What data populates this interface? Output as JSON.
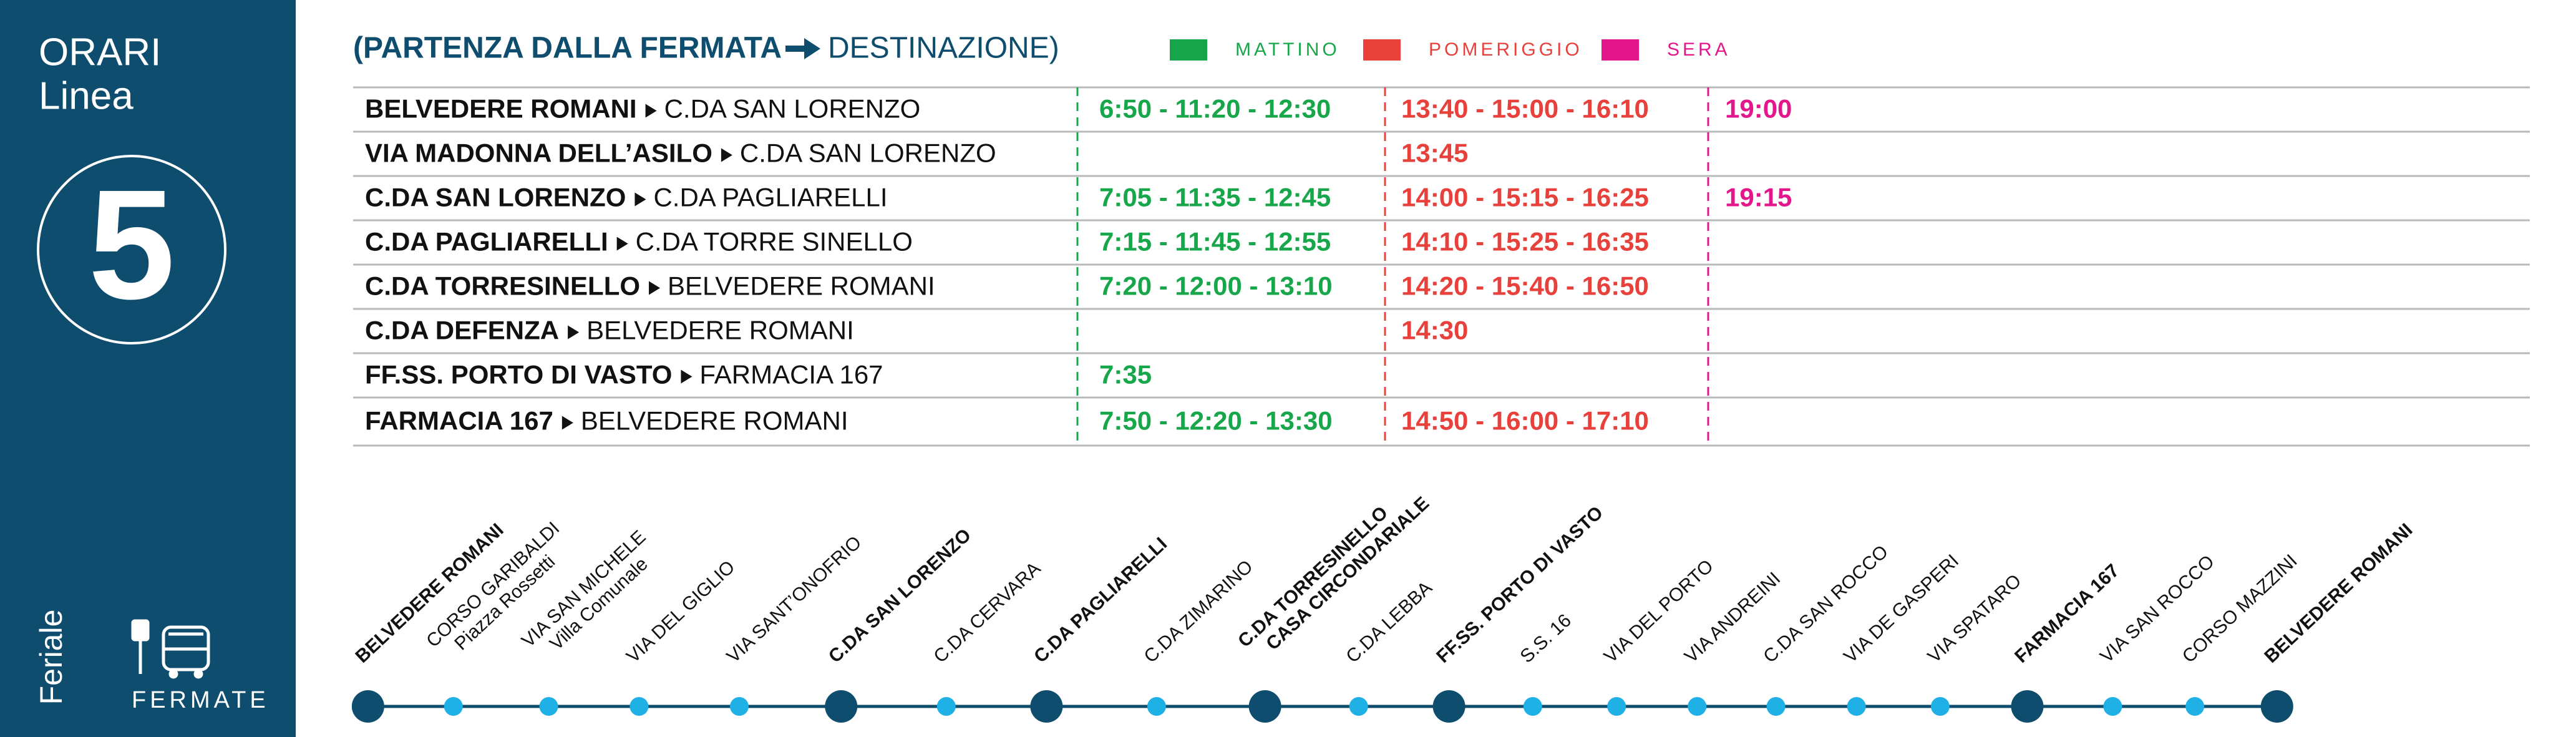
{
  "sidebar": {
    "title": "ORARI",
    "subtitle": "Linea",
    "line_number": "5",
    "day_type": "Feriale",
    "stops_label": "FERMATE"
  },
  "header": {
    "departure": "(PARTENZA DALLA FERMATA",
    "destination": "DESTINAZIONE)",
    "legend": [
      {
        "label": "MATTINO",
        "color": "#17a74a"
      },
      {
        "label": "POMERIGGIO",
        "color": "#e8403b"
      },
      {
        "label": "SERA",
        "color": "#e3168b"
      }
    ]
  },
  "table": {
    "rows": [
      {
        "from": "BELVEDERE ROMANI",
        "to": "C.DA SAN LORENZO",
        "times": [
          "6:50 - 11:20 - 12:30",
          "13:40 - 15:00 - 16:10",
          "19:00"
        ]
      },
      {
        "from": "VIA MADONNA DELL’ASILO",
        "to": "C.DA SAN LORENZO",
        "times": [
          null,
          "13:45",
          null
        ]
      },
      {
        "from": "C.DA SAN LORENZO",
        "to": "C.DA PAGLIARELLI",
        "times": [
          "7:05 - 11:35 - 12:45",
          "14:00 - 15:15 - 16:25",
          "19:15"
        ]
      },
      {
        "from": "C.DA PAGLIARELLI",
        "to": "C.DA TORRE SINELLO",
        "times": [
          "7:15 - 11:45 - 12:55",
          "14:10 - 15:25 - 16:35",
          null
        ]
      },
      {
        "from": "C.DA TORRESINELLO",
        "to": "BELVEDERE ROMANI",
        "times": [
          "7:20 - 12:00 - 13:10",
          "14:20 - 15:40 - 16:50",
          null
        ]
      },
      {
        "from": "C.DA DEFENZA",
        "to": "BELVEDERE ROMANI",
        "times": [
          null,
          "14:30",
          null
        ]
      },
      {
        "from": "FF.SS. PORTO DI VASTO",
        "to": "FARMACIA 167",
        "times": [
          "7:35",
          null,
          null
        ]
      },
      {
        "from": "FARMACIA 167",
        "to": "BELVEDERE ROMANI",
        "times": [
          "7:50 - 12:20 - 13:30",
          "14:50 - 16:00 - 17:10",
          null
        ]
      }
    ]
  },
  "stops": [
    {
      "label": [
        "BELVEDERE ROMANI"
      ],
      "major": true
    },
    {
      "label": [
        "CORSO GARIBALDI",
        "Piazza Rossetti"
      ],
      "major": false
    },
    {
      "label": [
        "VIA SAN MICHELE",
        "Villa Comunale"
      ],
      "major": false
    },
    {
      "label": [
        "VIA DEL GIGLIO"
      ],
      "major": false
    },
    {
      "label": [
        "VIA SANT’ONOFRIO"
      ],
      "major": false
    },
    {
      "label": [
        "C.DA SAN LORENZO"
      ],
      "major": true
    },
    {
      "label": [
        "C.DA CERVARA"
      ],
      "major": false
    },
    {
      "label": [
        "C.DA PAGLIARELLI"
      ],
      "major": true
    },
    {
      "label": [
        "C.DA ZIMARINO"
      ],
      "major": false
    },
    {
      "label": [
        "C.DA TORRESINELLO",
        "CASA CIRCONDARIALE"
      ],
      "major": true
    },
    {
      "label": [
        "C.DA LEBBA"
      ],
      "major": false
    },
    {
      "label": [
        "FF.SS. PORTO DI VASTO"
      ],
      "major": true
    },
    {
      "label": [
        "S.S. 16"
      ],
      "major": false
    },
    {
      "label": [
        "VIA DEL PORTO"
      ],
      "major": false
    },
    {
      "label": [
        "VIA ANDREINI"
      ],
      "major": false
    },
    {
      "label": [
        "C.DA SAN ROCCO"
      ],
      "major": false
    },
    {
      "label": [
        "VIA DE GASPERI"
      ],
      "major": false
    },
    {
      "label": [
        "VIA SPATARO"
      ],
      "major": false
    },
    {
      "label": [
        "FARMACIA 167"
      ],
      "major": true
    },
    {
      "label": [
        "VIA SAN ROCCO"
      ],
      "major": false
    },
    {
      "label": [
        "CORSO MAZZINI"
      ],
      "major": false
    },
    {
      "label": [
        "BELVEDERE ROMANI"
      ],
      "major": true
    }
  ]
}
